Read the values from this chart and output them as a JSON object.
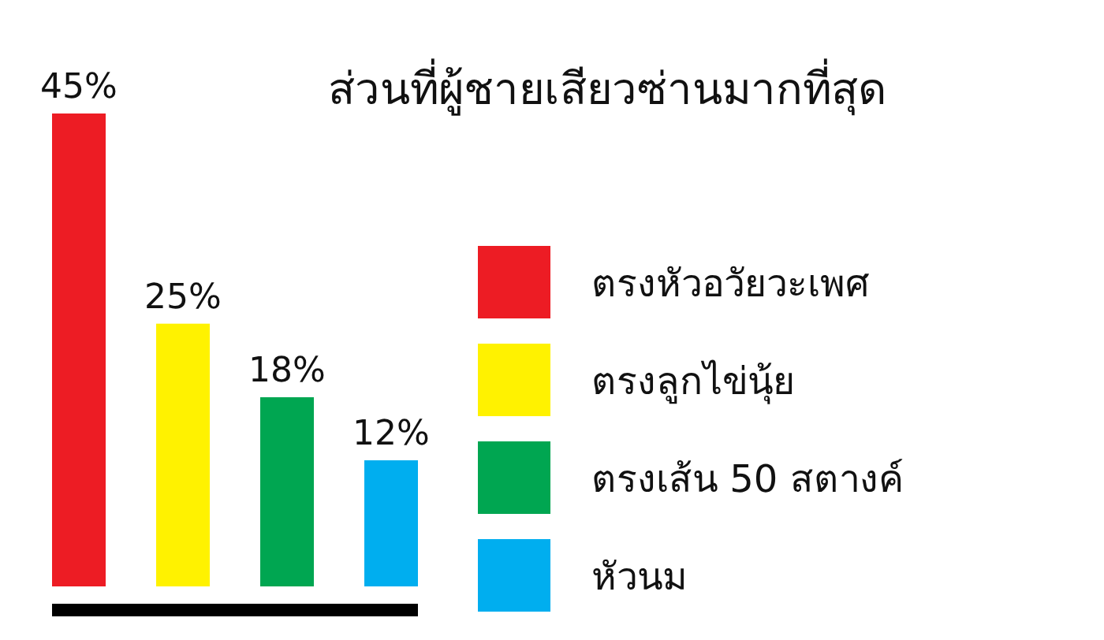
{
  "chart_data": {
    "type": "bar",
    "title": "ส่วนที่ผู้ชายเสียวซ่านมากที่สุด",
    "categories": [
      null,
      null,
      null,
      null
    ],
    "stacked": true,
    "series": [
      {
        "name": "ตรงหัวอวัยวะเพศ",
        "color": "#ed1c24",
        "values": [
          45,
          null,
          null,
          null
        ],
        "value_labels": [
          "45%",
          null,
          null,
          null
        ]
      },
      {
        "name": "ตรงลูกไข่นุ้ย",
        "color": "#fff200",
        "values": [
          null,
          25,
          null,
          null
        ],
        "value_labels": [
          null,
          "25%",
          null,
          null
        ]
      },
      {
        "name": "ตรงเส้น 50 สตางค์",
        "color": "#00a651",
        "values": [
          null,
          null,
          18,
          null
        ],
        "value_labels": [
          null,
          null,
          "18%",
          null
        ]
      },
      {
        "name": "หัวนม",
        "color": "#00aeef",
        "values": [
          null,
          null,
          null,
          12
        ],
        "value_labels": [
          null,
          null,
          null,
          "12%"
        ]
      }
    ],
    "legend": "right"
  }
}
